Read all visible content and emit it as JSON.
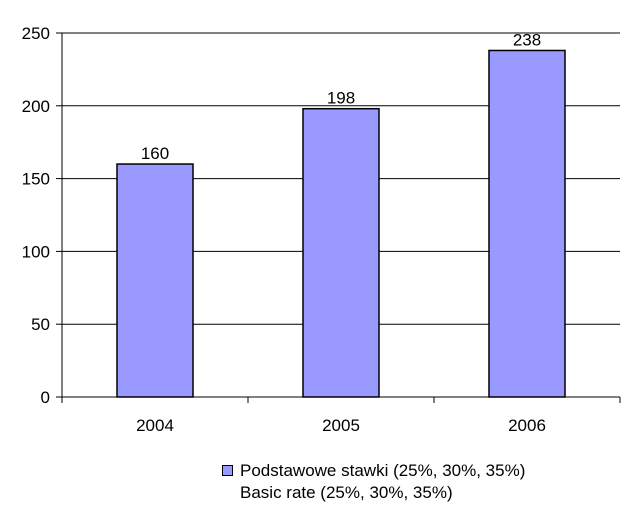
{
  "chart_data": {
    "type": "bar",
    "title": "",
    "xlabel": "",
    "ylabel": "",
    "categories": [
      "2004",
      "2005",
      "2006"
    ],
    "series": [
      {
        "name": "Podstawowe stawki (25%, 30%, 35%)",
        "name_en": "Basic rate (25%, 30%, 35%)",
        "values": [
          160,
          198,
          238
        ],
        "data_labels": [
          "160",
          "198",
          "238"
        ],
        "color": "#9999ff"
      }
    ],
    "ylim": [
      0,
      250
    ],
    "yticks": [
      "0",
      "50",
      "100",
      "150",
      "200",
      "250"
    ],
    "grid": true,
    "legend_position": "bottom"
  },
  "legend": {
    "line1": "Podstawowe stawki (25%, 30%, 35%)",
    "line2": "Basic rate (25%, 30%, 35%)",
    "swatch_color": "#9999ff"
  }
}
